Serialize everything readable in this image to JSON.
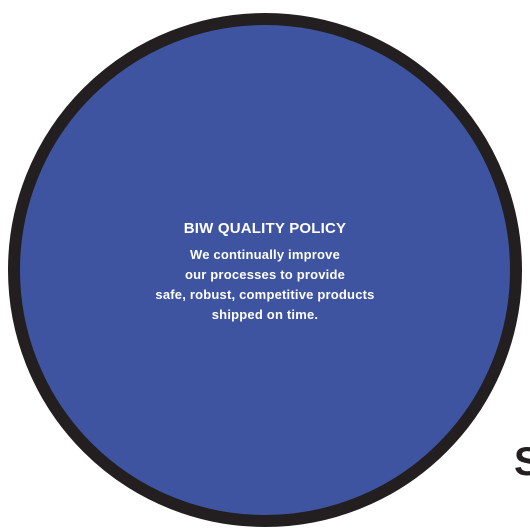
{
  "policy": {
    "title": "BIW QUALITY POLICY",
    "lines": [
      "We continually improve",
      "our processes to provide",
      "safe, robust, competitive products",
      "shipped on time."
    ]
  },
  "edge_text": "S",
  "colors": {
    "circle_fill": "#3f54a1",
    "circle_border": "#231f20",
    "text": "#ffffff",
    "background": "#ffffff"
  }
}
